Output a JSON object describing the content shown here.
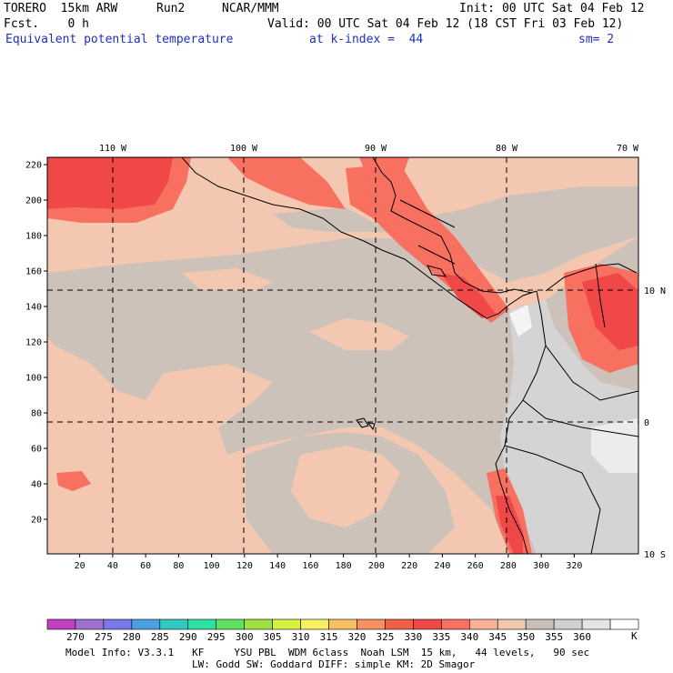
{
  "header": {
    "model": "TORERO  15km ARW",
    "run": "Run2",
    "center": "NCAR/MMM",
    "init": "Init: 00 UTC Sat 04 Feb 12",
    "fcst": "Fcst.    0 h",
    "valid": "Valid: 00 UTC Sat 04 Feb 12 (18 CST Fri 03 Feb 12)",
    "field": "Equivalent potential temperature",
    "level": "at k-index =  44",
    "smoothing": "sm= 2"
  },
  "map": {
    "lon_labels": [
      "110 W",
      "100 W",
      "90 W",
      "80 W",
      "70 W"
    ],
    "lat_labels": [
      "10 N",
      "0",
      "10 S"
    ],
    "y_ticks": [
      "220",
      "200",
      "180",
      "160",
      "140",
      "120",
      "100",
      "80",
      "60",
      "40",
      "20"
    ],
    "x_ticks": [
      "20",
      "40",
      "60",
      "80",
      "100",
      "120",
      "140",
      "160",
      "180",
      "200",
      "220",
      "240",
      "260",
      "280",
      "300",
      "320"
    ]
  },
  "colorbar": {
    "levels": [
      "270",
      "275",
      "280",
      "285",
      "290",
      "295",
      "300",
      "305",
      "310",
      "315",
      "320",
      "325",
      "330",
      "335",
      "340",
      "345",
      "350",
      "355",
      "360"
    ],
    "unit": "K",
    "colors": [
      "#c040c0",
      "#a070d0",
      "#7878e8",
      "#4aa0e0",
      "#30c8c0",
      "#30e0a0",
      "#60e060",
      "#a0e040",
      "#d8f040",
      "#f8f060",
      "#f8c060",
      "#f89060",
      "#f06048",
      "#f04848",
      "#f87060",
      "#f8b098",
      "#f0c8b0",
      "#c8c0b8",
      "#d0d0d0",
      "#e4e4e4",
      "#ffffff"
    ]
  },
  "footer": {
    "line1": "Model Info: V3.3.1   KF     YSU PBL  WDM 6class  Noah LSM  15 km,   44 levels,   90 sec",
    "line2": "LW: Godd SW: Goddard DIFF: simple KM: 2D Smagor"
  }
}
